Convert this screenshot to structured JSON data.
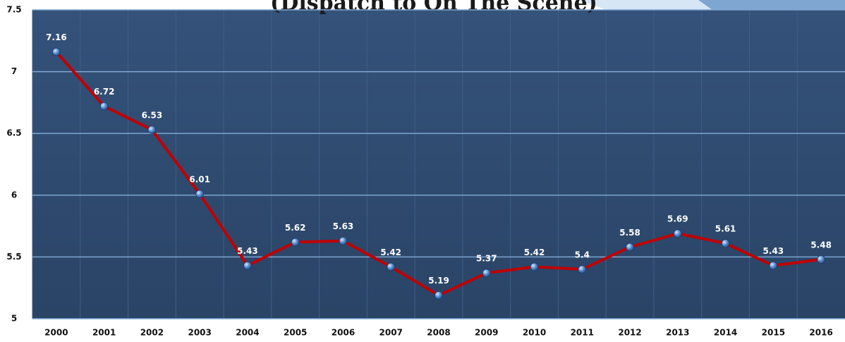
{
  "chart_data": {
    "type": "line",
    "title": "(Dispatch to On The Scene)",
    "categories": [
      "2000",
      "2001",
      "2002",
      "2003",
      "2004",
      "2005",
      "2006",
      "2007",
      "2008",
      "2009",
      "2010",
      "2011",
      "2012",
      "2013",
      "2014",
      "2015",
      "2016"
    ],
    "values": [
      7.16,
      6.72,
      6.53,
      6.01,
      5.43,
      5.62,
      5.63,
      5.42,
      5.19,
      5.37,
      5.42,
      5.4,
      5.58,
      5.69,
      5.61,
      5.43,
      5.48
    ],
    "color": "#c00000",
    "ylim": [
      5,
      7.5
    ],
    "yticks": [
      5,
      5.5,
      6,
      6.5,
      7,
      7.5
    ],
    "grid": true
  }
}
